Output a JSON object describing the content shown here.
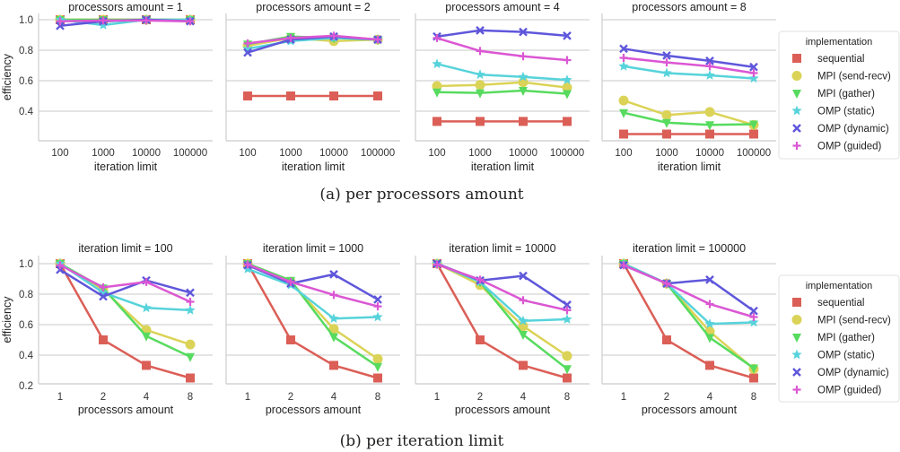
{
  "colors": {
    "sequential": "#db5f57",
    "MPI (send-recv)": "#dbd357",
    "MPI (gather)": "#57db5f",
    "OMP (static)": "#57d3db",
    "OMP (dynamic)": "#5f57db",
    "OMP (guided)": "#db57d3",
    "grid": "#d4d4d4"
  },
  "markers": {
    "sequential": "square",
    "MPI (send-recv)": "circle",
    "MPI (gather)": "triangle-down",
    "OMP (static)": "star",
    "OMP (dynamic)": "x",
    "OMP (guided)": "plus"
  },
  "captions": {
    "a": "(a) per processors amount",
    "b": "(b) per iteration limit"
  },
  "legend": {
    "title": "implementation",
    "entries": [
      "sequential",
      "MPI (send-recv)",
      "MPI (gather)",
      "OMP (static)",
      "OMP (dynamic)",
      "OMP (guided)"
    ],
    "placement": "right"
  },
  "chart_data": [
    {
      "type": "line",
      "title": "processors amount = 1",
      "xlabel": "iteration limit",
      "ylabel": "efficiency",
      "categories": [
        "100",
        "1000",
        "10000",
        "100000"
      ],
      "yticks": [
        "0.4",
        "0.6",
        "0.8",
        "1.0"
      ],
      "ylim": [
        0.21,
        1.04
      ],
      "grid": true,
      "series": [
        {
          "name": "sequential",
          "values": [
            1,
            1,
            1,
            1
          ]
        },
        {
          "name": "MPI (send-recv)",
          "values": [
            1,
            1,
            1,
            1
          ]
        },
        {
          "name": "MPI (gather)",
          "values": [
            1,
            1,
            1,
            1
          ]
        },
        {
          "name": "OMP (static)",
          "values": [
            1,
            0.965,
            1,
            1
          ]
        },
        {
          "name": "OMP (dynamic)",
          "values": [
            0.96,
            0.99,
            1,
            0.99
          ]
        },
        {
          "name": "OMP (guided)",
          "values": [
            0.99,
            0.995,
            0.995,
            0.99
          ]
        }
      ]
    },
    {
      "type": "line",
      "title": "processors amount = 2",
      "xlabel": "iteration limit",
      "ylabel": "",
      "categories": [
        "100",
        "1000",
        "10000",
        "100000"
      ],
      "ylim": [
        0.21,
        1.04
      ],
      "grid": true,
      "series": [
        {
          "name": "sequential",
          "values": [
            0.5,
            0.5,
            0.5,
            0.5
          ]
        },
        {
          "name": "MPI (send-recv)",
          "values": [
            0.83,
            0.88,
            0.86,
            0.87
          ]
        },
        {
          "name": "MPI (gather)",
          "values": [
            0.84,
            0.89,
            0.88,
            0.87
          ]
        },
        {
          "name": "OMP (static)",
          "values": [
            0.81,
            0.86,
            0.88,
            0.87
          ]
        },
        {
          "name": "OMP (dynamic)",
          "values": [
            0.785,
            0.87,
            0.89,
            0.87
          ]
        },
        {
          "name": "OMP (guided)",
          "values": [
            0.845,
            0.88,
            0.895,
            0.87
          ]
        }
      ]
    },
    {
      "type": "line",
      "title": "processors amount = 4",
      "xlabel": "iteration limit",
      "ylabel": "",
      "categories": [
        "100",
        "1000",
        "10000",
        "100000"
      ],
      "ylim": [
        0.21,
        1.04
      ],
      "grid": true,
      "series": [
        {
          "name": "sequential",
          "values": [
            0.333,
            0.333,
            0.333,
            0.333
          ]
        },
        {
          "name": "MPI (send-recv)",
          "values": [
            0.565,
            0.572,
            0.59,
            0.555
          ]
        },
        {
          "name": "MPI (gather)",
          "values": [
            0.525,
            0.52,
            0.535,
            0.515
          ]
        },
        {
          "name": "OMP (static)",
          "values": [
            0.71,
            0.64,
            0.625,
            0.605
          ]
        },
        {
          "name": "OMP (dynamic)",
          "values": [
            0.89,
            0.93,
            0.92,
            0.895
          ]
        },
        {
          "name": "OMP (guided)",
          "values": [
            0.88,
            0.795,
            0.76,
            0.735
          ]
        }
      ]
    },
    {
      "type": "line",
      "title": "processors amount = 8",
      "xlabel": "iteration limit",
      "ylabel": "",
      "categories": [
        "100",
        "1000",
        "10000",
        "100000"
      ],
      "ylim": [
        0.21,
        1.04
      ],
      "grid": true,
      "series": [
        {
          "name": "sequential",
          "values": [
            0.25,
            0.25,
            0.25,
            0.25
          ]
        },
        {
          "name": "MPI (send-recv)",
          "values": [
            0.47,
            0.375,
            0.395,
            0.31
          ]
        },
        {
          "name": "MPI (gather)",
          "values": [
            0.39,
            0.325,
            0.31,
            0.315
          ]
        },
        {
          "name": "OMP (static)",
          "values": [
            0.695,
            0.65,
            0.635,
            0.615
          ]
        },
        {
          "name": "OMP (dynamic)",
          "values": [
            0.81,
            0.765,
            0.73,
            0.69
          ]
        },
        {
          "name": "OMP (guided)",
          "values": [
            0.75,
            0.72,
            0.695,
            0.65
          ]
        }
      ]
    },
    {
      "type": "line",
      "title": "iteration limit = 100",
      "xlabel": "processors amount",
      "ylabel": "efficiency",
      "categories": [
        "1",
        "2",
        "4",
        "8"
      ],
      "yticks": [
        "0.2",
        "0.4",
        "0.6",
        "0.8",
        "1.0"
      ],
      "ylim": [
        0.21,
        1.05
      ],
      "grid": true,
      "series": [
        {
          "name": "sequential",
          "values": [
            1,
            0.5,
            0.333,
            0.25
          ]
        },
        {
          "name": "MPI (send-recv)",
          "values": [
            1,
            0.83,
            0.565,
            0.47
          ]
        },
        {
          "name": "MPI (gather)",
          "values": [
            1,
            0.84,
            0.525,
            0.39
          ]
        },
        {
          "name": "OMP (static)",
          "values": [
            1,
            0.81,
            0.71,
            0.695
          ]
        },
        {
          "name": "OMP (dynamic)",
          "values": [
            0.96,
            0.785,
            0.89,
            0.81
          ]
        },
        {
          "name": "OMP (guided)",
          "values": [
            0.99,
            0.845,
            0.88,
            0.75
          ]
        }
      ]
    },
    {
      "type": "line",
      "title": "iteration limit = 1000",
      "xlabel": "processors amount",
      "ylabel": "",
      "categories": [
        "1",
        "2",
        "4",
        "8"
      ],
      "ylim": [
        0.21,
        1.05
      ],
      "grid": true,
      "series": [
        {
          "name": "sequential",
          "values": [
            1,
            0.5,
            0.333,
            0.25
          ]
        },
        {
          "name": "MPI (send-recv)",
          "values": [
            1,
            0.88,
            0.572,
            0.375
          ]
        },
        {
          "name": "MPI (gather)",
          "values": [
            1,
            0.89,
            0.52,
            0.325
          ]
        },
        {
          "name": "OMP (static)",
          "values": [
            0.965,
            0.86,
            0.64,
            0.65
          ]
        },
        {
          "name": "OMP (dynamic)",
          "values": [
            0.99,
            0.87,
            0.93,
            0.765
          ]
        },
        {
          "name": "OMP (guided)",
          "values": [
            0.995,
            0.88,
            0.795,
            0.72
          ]
        }
      ]
    },
    {
      "type": "line",
      "title": "iteration limit = 10000",
      "xlabel": "processors amount",
      "ylabel": "",
      "categories": [
        "1",
        "2",
        "4",
        "8"
      ],
      "ylim": [
        0.21,
        1.05
      ],
      "grid": true,
      "series": [
        {
          "name": "sequential",
          "values": [
            1,
            0.5,
            0.333,
            0.25
          ]
        },
        {
          "name": "MPI (send-recv)",
          "values": [
            1,
            0.86,
            0.59,
            0.395
          ]
        },
        {
          "name": "MPI (gather)",
          "values": [
            1,
            0.88,
            0.535,
            0.31
          ]
        },
        {
          "name": "OMP (static)",
          "values": [
            1,
            0.88,
            0.625,
            0.635
          ]
        },
        {
          "name": "OMP (dynamic)",
          "values": [
            1,
            0.89,
            0.92,
            0.73
          ]
        },
        {
          "name": "OMP (guided)",
          "values": [
            0.995,
            0.895,
            0.76,
            0.695
          ]
        }
      ]
    },
    {
      "type": "line",
      "title": "iteration limit = 100000",
      "xlabel": "processors amount",
      "ylabel": "",
      "categories": [
        "1",
        "2",
        "4",
        "8"
      ],
      "ylim": [
        0.21,
        1.05
      ],
      "grid": true,
      "series": [
        {
          "name": "sequential",
          "values": [
            1,
            0.5,
            0.333,
            0.25
          ]
        },
        {
          "name": "MPI (send-recv)",
          "values": [
            1,
            0.87,
            0.555,
            0.31
          ]
        },
        {
          "name": "MPI (gather)",
          "values": [
            1,
            0.87,
            0.515,
            0.315
          ]
        },
        {
          "name": "OMP (static)",
          "values": [
            1,
            0.87,
            0.605,
            0.615
          ]
        },
        {
          "name": "OMP (dynamic)",
          "values": [
            0.99,
            0.87,
            0.895,
            0.69
          ]
        },
        {
          "name": "OMP (guided)",
          "values": [
            0.99,
            0.87,
            0.735,
            0.65
          ]
        }
      ]
    }
  ]
}
